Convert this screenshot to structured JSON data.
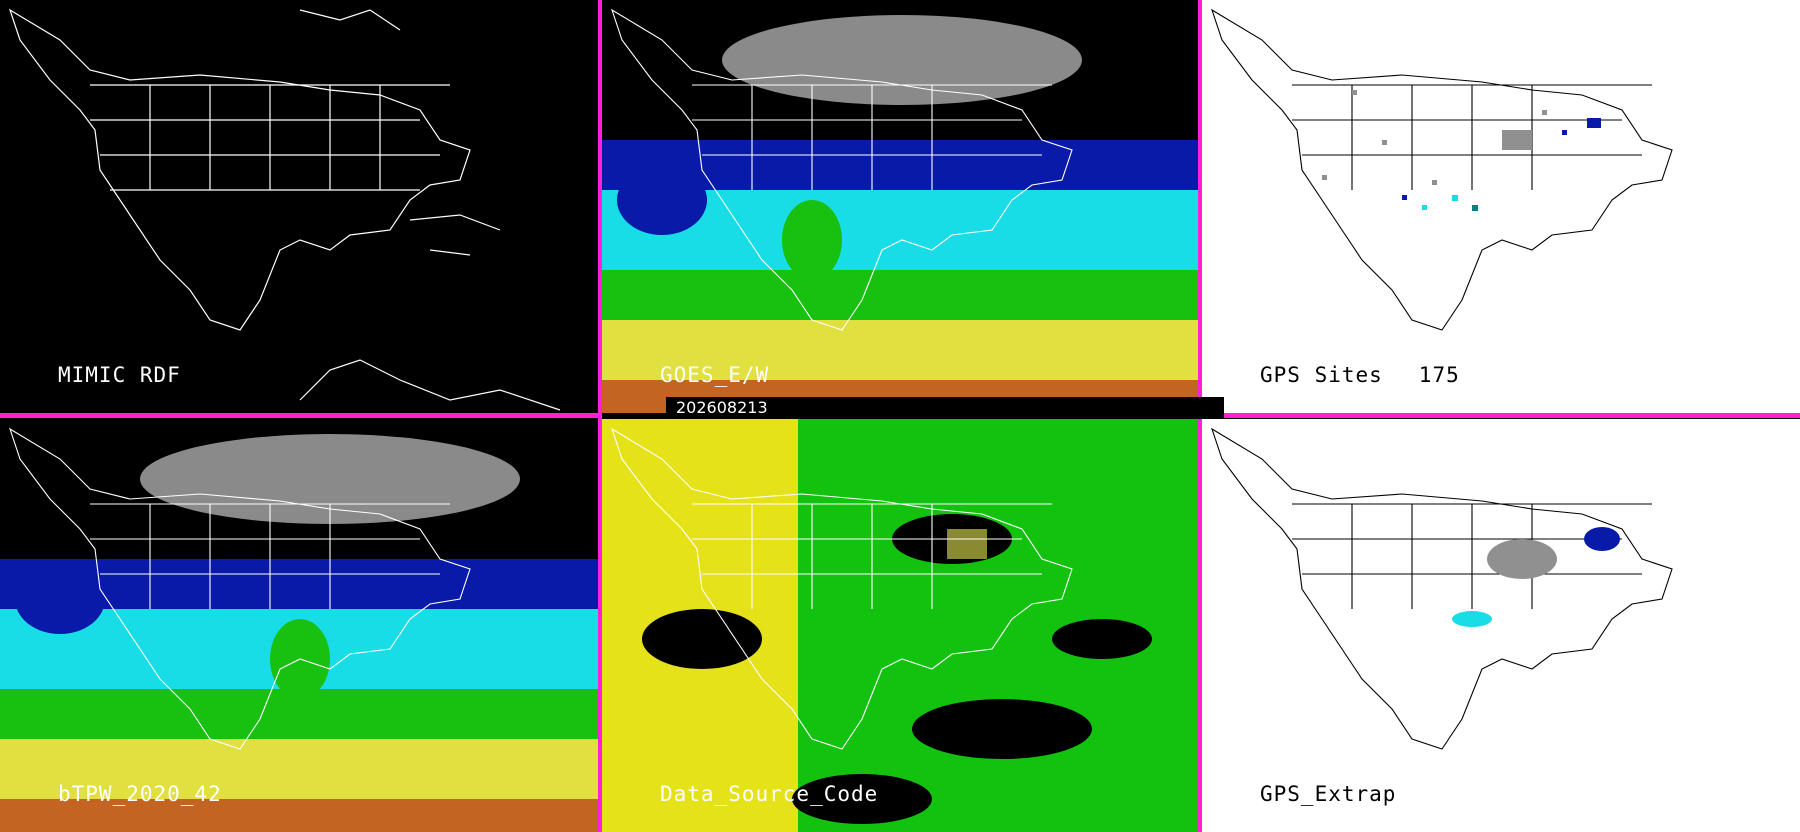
{
  "panels": {
    "mimic_rdf": {
      "label": "MIMIC RDF"
    },
    "goes_ew": {
      "label": "GOES_E/W"
    },
    "gps_sites": {
      "label": "GPS Sites",
      "count": "175"
    },
    "btpw": {
      "label": "bTPW_2020_42"
    },
    "data_source_code": {
      "label": "Data_Source_Code"
    },
    "gps_extrap": {
      "label": "GPS_Extrap"
    }
  },
  "timestamp": "202608213",
  "colors": {
    "divider": "#ff20d8",
    "background_dark": "#000000",
    "background_light": "#ffffff",
    "tpw_dark_blue": "#0a1aa8",
    "tpw_cyan": "#18dde6",
    "tpw_green": "#18c010",
    "tpw_yellow": "#e0e040",
    "tpw_red": "#b01010",
    "dsc_yellow": "#e6e21a",
    "dsc_green": "#13c20e"
  }
}
